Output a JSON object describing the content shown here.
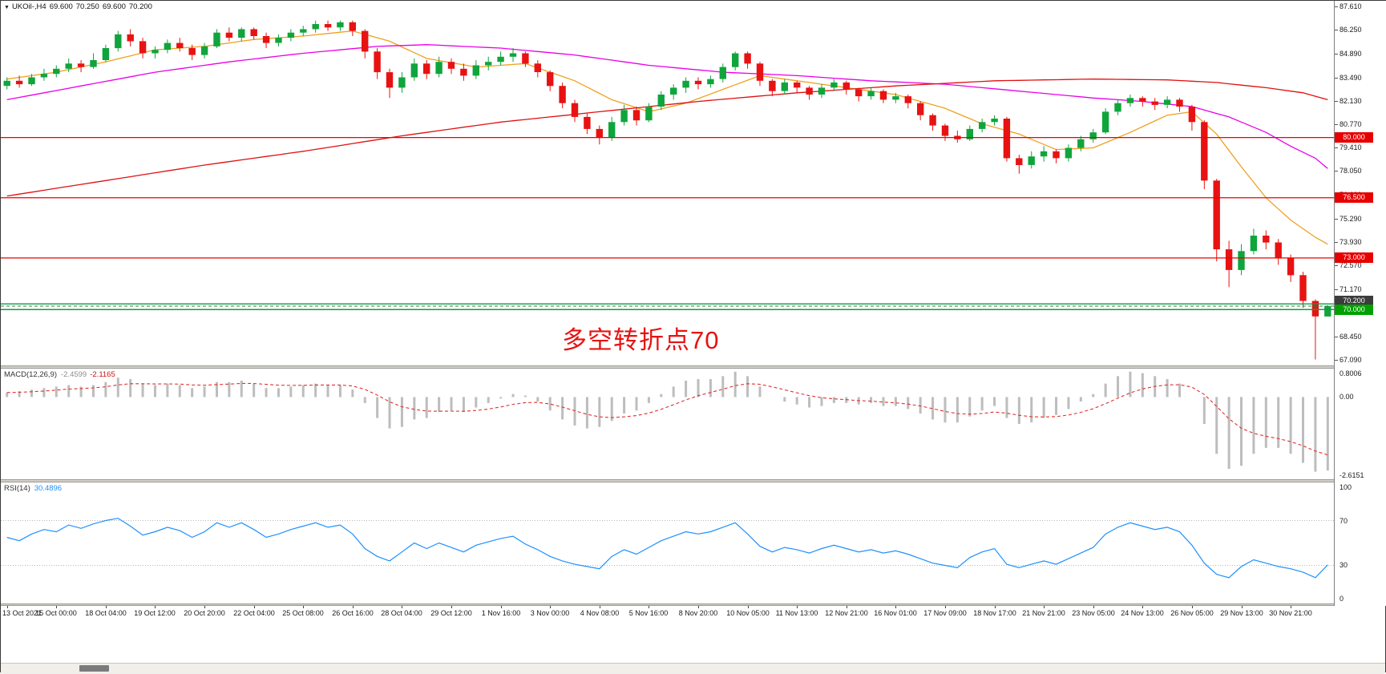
{
  "header": {
    "dropdown_icon": "▼",
    "symbol_period": "UKOil-,H4",
    "open": "69.600",
    "high": "70.250",
    "low": "69.600",
    "close": "70.200"
  },
  "annotation": {
    "text": "多空转折点70",
    "color": "#e81212"
  },
  "colors": {
    "bull": "#0fa53c",
    "bear": "#e81212",
    "ma_fast": "#f0a020",
    "ma_mid": "#e800e8",
    "ma_slow": "#e01010",
    "macd_hist": "#bdbdbd",
    "macd_signal": "#e03030",
    "rsi_line": "#1e90ff",
    "rsi_level": "#b8b8b8",
    "axis_text": "#1a1a1a"
  },
  "price_axis": {
    "ticks": [
      {
        "label": "87.610",
        "price": 87.61
      },
      {
        "label": "86.250",
        "price": 86.25
      },
      {
        "label": "84.890",
        "price": 84.89
      },
      {
        "label": "83.490",
        "price": 83.49
      },
      {
        "label": "82.130",
        "price": 82.13
      },
      {
        "label": "80.770",
        "price": 80.77
      },
      {
        "label": "79.410",
        "price": 79.41
      },
      {
        "label": "78.050",
        "price": 78.05
      },
      {
        "label": "76.690",
        "price": 76.69
      },
      {
        "label": "75.290",
        "price": 75.29
      },
      {
        "label": "73.930",
        "price": 73.93
      },
      {
        "label": "72.570",
        "price": 72.57
      },
      {
        "label": "71.170",
        "price": 71.17
      },
      {
        "label": "69.810",
        "price": 69.81
      },
      {
        "label": "68.450",
        "price": 68.45
      },
      {
        "label": "67.090",
        "price": 67.09
      }
    ],
    "badges": [
      {
        "label": "80.000",
        "price": 80.0,
        "bg": "#e60000",
        "align": "center"
      },
      {
        "label": "76.500",
        "price": 76.5,
        "bg": "#e60000",
        "align": "center"
      },
      {
        "label": "73.000",
        "price": 73.0,
        "bg": "#e60000",
        "align": "center"
      },
      {
        "label": "70.200",
        "price": 70.2,
        "bg": "#3c3c3c",
        "align": "above"
      },
      {
        "label": "70.000",
        "price": 70.0,
        "bg": "#00a000",
        "align": "center"
      }
    ]
  },
  "drawn_objects": {
    "hlines": [
      {
        "price": 80.0,
        "color": "#ee0000",
        "style": "solid",
        "width": 1.2
      },
      {
        "price": 76.5,
        "color": "#ee0000",
        "style": "solid",
        "width": 1.2
      },
      {
        "price": 73.0,
        "color": "#ee0000",
        "style": "solid",
        "width": 1.2
      },
      {
        "price": 70.33,
        "color": "#00a33c",
        "style": "solid",
        "width": 1.4
      },
      {
        "price": 70.0,
        "color": "#00a33c",
        "style": "solid",
        "width": 1.4
      },
      {
        "price": 70.2,
        "color": "#606060",
        "style": "dashed",
        "width": 1
      }
    ]
  },
  "time_axis": {
    "labels": [
      "13 Oct 2021",
      "15 Oct 00:00",
      "18 Oct 04:00",
      "19 Oct 12:00",
      "20 Oct 20:00",
      "22 Oct 04:00",
      "25 Oct 08:00",
      "26 Oct 16:00",
      "28 Oct 04:00",
      "29 Oct 12:00",
      "1 Nov 16:00",
      "3 Nov 00:00",
      "4 Nov 08:00",
      "5 Nov 16:00",
      "8 Nov 20:00",
      "10 Nov 05:00",
      "11 Nov 13:00",
      "12 Nov 21:00",
      "16 Nov 01:00",
      "17 Nov 09:00",
      "18 Nov 17:00",
      "21 Nov 21:00",
      "23 Nov 05:00",
      "24 Nov 13:00",
      "26 Nov 05:00",
      "29 Nov 13:00",
      "30 Nov 21:00"
    ],
    "bars_per_label": 4
  },
  "chart_data": {
    "type": "candlestick",
    "symbol": "UKOil-",
    "timeframe": "H4",
    "y_range": [
      66.75,
      87.95
    ],
    "candles": [
      [
        83.0,
        83.5,
        82.8,
        83.3
      ],
      [
        83.3,
        83.6,
        82.9,
        83.1
      ],
      [
        83.1,
        83.7,
        83.0,
        83.5
      ],
      [
        83.5,
        84.0,
        83.3,
        83.7
      ],
      [
        83.7,
        84.2,
        83.5,
        84.0
      ],
      [
        84.0,
        84.6,
        83.8,
        84.3
      ],
      [
        84.3,
        84.5,
        83.8,
        84.1
      ],
      [
        84.1,
        84.9,
        84.0,
        84.5
      ],
      [
        84.5,
        85.4,
        84.4,
        85.2
      ],
      [
        85.2,
        86.2,
        85.0,
        86.0
      ],
      [
        86.0,
        86.3,
        85.3,
        85.6
      ],
      [
        85.6,
        85.8,
        84.6,
        84.9
      ],
      [
        84.9,
        85.3,
        84.6,
        85.1
      ],
      [
        85.1,
        85.7,
        84.9,
        85.5
      ],
      [
        85.5,
        85.8,
        85.0,
        85.2
      ],
      [
        85.2,
        85.4,
        84.5,
        84.8
      ],
      [
        84.8,
        85.5,
        84.6,
        85.3
      ],
      [
        85.3,
        86.3,
        85.2,
        86.1
      ],
      [
        86.1,
        86.4,
        85.6,
        85.8
      ],
      [
        85.8,
        86.4,
        85.6,
        86.3
      ],
      [
        86.3,
        86.4,
        85.7,
        85.9
      ],
      [
        85.9,
        86.1,
        85.2,
        85.5
      ],
      [
        85.5,
        86.0,
        85.3,
        85.8
      ],
      [
        85.8,
        86.3,
        85.6,
        86.1
      ],
      [
        86.1,
        86.5,
        85.9,
        86.3
      ],
      [
        86.3,
        86.8,
        86.1,
        86.6
      ],
      [
        86.6,
        86.8,
        86.2,
        86.4
      ],
      [
        86.4,
        86.8,
        86.2,
        86.7
      ],
      [
        86.7,
        86.8,
        85.9,
        86.2
      ],
      [
        86.2,
        86.3,
        84.6,
        85.0
      ],
      [
        85.0,
        85.2,
        83.4,
        83.8
      ],
      [
        83.8,
        84.0,
        82.3,
        82.9
      ],
      [
        82.9,
        83.8,
        82.6,
        83.5
      ],
      [
        83.5,
        84.6,
        83.3,
        84.3
      ],
      [
        84.3,
        84.5,
        83.4,
        83.7
      ],
      [
        83.7,
        84.7,
        83.5,
        84.4
      ],
      [
        84.4,
        84.6,
        83.7,
        84.0
      ],
      [
        84.0,
        84.3,
        83.3,
        83.6
      ],
      [
        83.6,
        84.5,
        83.4,
        84.2
      ],
      [
        84.2,
        84.7,
        83.9,
        84.4
      ],
      [
        84.4,
        85.0,
        84.2,
        84.7
      ],
      [
        84.7,
        85.2,
        84.4,
        84.9
      ],
      [
        84.9,
        85.0,
        84.1,
        84.3
      ],
      [
        84.3,
        84.5,
        83.5,
        83.8
      ],
      [
        83.8,
        83.9,
        82.7,
        83.0
      ],
      [
        83.0,
        83.2,
        81.7,
        82.0
      ],
      [
        82.0,
        82.2,
        80.9,
        81.2
      ],
      [
        81.2,
        81.4,
        80.2,
        80.5
      ],
      [
        80.5,
        80.7,
        79.6,
        80.0
      ],
      [
        80.0,
        81.2,
        79.8,
        80.9
      ],
      [
        80.9,
        81.9,
        80.7,
        81.6
      ],
      [
        81.6,
        81.8,
        80.7,
        81.0
      ],
      [
        81.0,
        82.0,
        80.9,
        81.8
      ],
      [
        81.8,
        82.7,
        81.6,
        82.5
      ],
      [
        82.5,
        83.1,
        82.2,
        82.9
      ],
      [
        82.9,
        83.5,
        82.6,
        83.3
      ],
      [
        83.3,
        83.5,
        82.8,
        83.1
      ],
      [
        83.1,
        83.6,
        82.9,
        83.4
      ],
      [
        83.4,
        84.3,
        83.2,
        84.1
      ],
      [
        84.1,
        85.0,
        83.9,
        84.9
      ],
      [
        84.9,
        85.0,
        84.0,
        84.3
      ],
      [
        84.3,
        84.4,
        83.0,
        83.3
      ],
      [
        83.3,
        83.4,
        82.4,
        82.7
      ],
      [
        82.7,
        83.4,
        82.5,
        83.2
      ],
      [
        83.2,
        83.3,
        82.6,
        82.9
      ],
      [
        82.9,
        83.0,
        82.2,
        82.5
      ],
      [
        82.5,
        83.1,
        82.3,
        82.9
      ],
      [
        82.9,
        83.4,
        82.7,
        83.2
      ],
      [
        83.2,
        83.3,
        82.5,
        82.8
      ],
      [
        82.8,
        82.9,
        82.1,
        82.4
      ],
      [
        82.4,
        82.9,
        82.2,
        82.7
      ],
      [
        82.7,
        82.8,
        82.0,
        82.2
      ],
      [
        82.2,
        82.6,
        82.0,
        82.4
      ],
      [
        82.4,
        82.5,
        81.7,
        82.0
      ],
      [
        82.0,
        82.1,
        81.0,
        81.3
      ],
      [
        81.3,
        81.4,
        80.4,
        80.7
      ],
      [
        80.7,
        80.8,
        79.8,
        80.1
      ],
      [
        80.1,
        80.4,
        79.7,
        79.9
      ],
      [
        79.9,
        80.7,
        79.8,
        80.5
      ],
      [
        80.5,
        81.1,
        80.3,
        80.9
      ],
      [
        80.9,
        81.3,
        80.7,
        81.1
      ],
      [
        81.1,
        81.2,
        78.6,
        78.8
      ],
      [
        78.8,
        79.0,
        77.9,
        78.4
      ],
      [
        78.4,
        79.2,
        78.2,
        78.9
      ],
      [
        78.9,
        79.5,
        78.6,
        79.2
      ],
      [
        79.2,
        79.3,
        78.5,
        78.8
      ],
      [
        78.8,
        79.6,
        78.6,
        79.4
      ],
      [
        79.4,
        80.1,
        79.2,
        79.9
      ],
      [
        79.9,
        80.5,
        79.7,
        80.3
      ],
      [
        80.3,
        81.7,
        80.2,
        81.5
      ],
      [
        81.5,
        82.2,
        81.3,
        82.0
      ],
      [
        82.0,
        82.5,
        81.8,
        82.3
      ],
      [
        82.3,
        82.4,
        81.8,
        82.1
      ],
      [
        82.1,
        82.3,
        81.6,
        81.9
      ],
      [
        81.9,
        82.4,
        81.7,
        82.2
      ],
      [
        82.2,
        82.3,
        81.5,
        81.8
      ],
      [
        81.8,
        81.9,
        80.4,
        80.9
      ],
      [
        80.9,
        81.0,
        77.0,
        77.5
      ],
      [
        77.5,
        77.6,
        72.8,
        73.5
      ],
      [
        73.5,
        74.0,
        71.3,
        72.3
      ],
      [
        72.3,
        73.8,
        72.0,
        73.4
      ],
      [
        73.4,
        74.7,
        73.2,
        74.3
      ],
      [
        74.3,
        74.6,
        73.5,
        73.9
      ],
      [
        73.9,
        74.1,
        72.6,
        73.0
      ],
      [
        73.0,
        73.2,
        71.6,
        72.0
      ],
      [
        72.0,
        72.2,
        70.1,
        70.5
      ],
      [
        70.5,
        70.6,
        67.1,
        69.6
      ],
      [
        69.6,
        70.25,
        69.6,
        70.2
      ]
    ],
    "moving_averages": [
      {
        "name": "ma-fast-orange",
        "color_key": "ma_fast",
        "anchors": [
          [
            0,
            83.4
          ],
          [
            4,
            83.8
          ],
          [
            8,
            84.4
          ],
          [
            12,
            85.1
          ],
          [
            16,
            85.3
          ],
          [
            20,
            85.7
          ],
          [
            24,
            85.9
          ],
          [
            28,
            86.2
          ],
          [
            31,
            85.6
          ],
          [
            34,
            84.6
          ],
          [
            38,
            84.1
          ],
          [
            42,
            84.3
          ],
          [
            46,
            83.3
          ],
          [
            49,
            82.2
          ],
          [
            52,
            81.5
          ],
          [
            55,
            82.0
          ],
          [
            58,
            82.8
          ],
          [
            61,
            83.6
          ],
          [
            64,
            83.3
          ],
          [
            68,
            82.9
          ],
          [
            72,
            82.5
          ],
          [
            76,
            81.7
          ],
          [
            79,
            80.8
          ],
          [
            82,
            80.2
          ],
          [
            85,
            79.3
          ],
          [
            88,
            79.4
          ],
          [
            91,
            80.3
          ],
          [
            94,
            81.3
          ],
          [
            96,
            81.5
          ],
          [
            98,
            80.2
          ],
          [
            100,
            78.3
          ],
          [
            102,
            76.5
          ],
          [
            104,
            75.2
          ],
          [
            106,
            74.2
          ],
          [
            107,
            73.8
          ]
        ]
      },
      {
        "name": "ma-mid-magenta",
        "color_key": "ma_mid",
        "anchors": [
          [
            0,
            82.2
          ],
          [
            6,
            83.0
          ],
          [
            12,
            83.8
          ],
          [
            18,
            84.4
          ],
          [
            24,
            84.9
          ],
          [
            30,
            85.3
          ],
          [
            34,
            85.4
          ],
          [
            40,
            85.2
          ],
          [
            46,
            84.8
          ],
          [
            52,
            84.2
          ],
          [
            58,
            83.8
          ],
          [
            64,
            83.6
          ],
          [
            70,
            83.3
          ],
          [
            76,
            83.1
          ],
          [
            82,
            82.7
          ],
          [
            88,
            82.3
          ],
          [
            92,
            82.1
          ],
          [
            96,
            81.8
          ],
          [
            99,
            81.2
          ],
          [
            102,
            80.3
          ],
          [
            104,
            79.5
          ],
          [
            106,
            78.8
          ],
          [
            107,
            78.2
          ]
        ]
      },
      {
        "name": "ma-slow-red",
        "color_key": "ma_slow",
        "anchors": [
          [
            0,
            76.6
          ],
          [
            8,
            77.5
          ],
          [
            16,
            78.4
          ],
          [
            24,
            79.2
          ],
          [
            32,
            80.1
          ],
          [
            40,
            80.9
          ],
          [
            48,
            81.5
          ],
          [
            56,
            82.1
          ],
          [
            64,
            82.6
          ],
          [
            72,
            83.0
          ],
          [
            80,
            83.3
          ],
          [
            88,
            83.4
          ],
          [
            94,
            83.35
          ],
          [
            98,
            83.2
          ],
          [
            102,
            82.9
          ],
          [
            105,
            82.6
          ],
          [
            107,
            82.2
          ]
        ]
      }
    ],
    "macd": {
      "label": "MACD(12,26,9)",
      "value": "-2.4599",
      "signal_value": "-2.1165",
      "scale_max_label": "0.8006",
      "scale_max": 0.8006,
      "scale_zero_label": "0.00",
      "scale_min_label": "-2.6151",
      "scale_min": -2.6151,
      "hist": [
        0.15,
        0.2,
        0.25,
        0.3,
        0.35,
        0.4,
        0.35,
        0.4,
        0.5,
        0.65,
        0.6,
        0.45,
        0.4,
        0.45,
        0.4,
        0.3,
        0.35,
        0.5,
        0.5,
        0.55,
        0.45,
        0.3,
        0.3,
        0.35,
        0.4,
        0.45,
        0.4,
        0.4,
        0.25,
        -0.2,
        -0.7,
        -1.05,
        -1.0,
        -0.75,
        -0.7,
        -0.5,
        -0.45,
        -0.5,
        -0.35,
        -0.2,
        -0.05,
        0.1,
        0.05,
        -0.15,
        -0.45,
        -0.75,
        -0.95,
        -1.05,
        -1.0,
        -0.8,
        -0.55,
        -0.45,
        -0.2,
        0.1,
        0.35,
        0.55,
        0.6,
        0.6,
        0.7,
        0.85,
        0.7,
        0.35,
        0.0,
        -0.15,
        -0.25,
        -0.35,
        -0.3,
        -0.2,
        -0.2,
        -0.25,
        -0.2,
        -0.3,
        -0.3,
        -0.4,
        -0.55,
        -0.75,
        -0.85,
        -0.85,
        -0.65,
        -0.45,
        -0.3,
        -0.7,
        -0.9,
        -0.85,
        -0.7,
        -0.6,
        -0.4,
        -0.15,
        0.1,
        0.45,
        0.7,
        0.85,
        0.8,
        0.7,
        0.6,
        0.45,
        0.0,
        -0.9,
        -1.9,
        -2.4,
        -2.3,
        -1.9,
        -1.7,
        -1.7,
        -1.9,
        -2.2,
        -2.5,
        -2.46
      ]
    },
    "rsi": {
      "label": "RSI(14)",
      "value": "30.4896",
      "levels": [
        {
          "label": "100",
          "value": 100
        },
        {
          "label": "70",
          "value": 70
        },
        {
          "label": "30",
          "value": 30
        },
        {
          "label": "0",
          "value": 0
        }
      ],
      "values": [
        55,
        52,
        58,
        62,
        60,
        66,
        63,
        67,
        70,
        72,
        65,
        57,
        60,
        64,
        61,
        55,
        60,
        68,
        64,
        68,
        62,
        55,
        58,
        62,
        65,
        68,
        64,
        66,
        58,
        45,
        38,
        34,
        42,
        50,
        45,
        50,
        46,
        42,
        48,
        51,
        54,
        56,
        49,
        44,
        38,
        34,
        31,
        29,
        27,
        38,
        44,
        40,
        46,
        52,
        56,
        60,
        58,
        60,
        64,
        68,
        58,
        47,
        42,
        46,
        44,
        41,
        45,
        48,
        45,
        42,
        44,
        41,
        43,
        40,
        36,
        32,
        30,
        28,
        37,
        42,
        45,
        31,
        28,
        31,
        34,
        31,
        36,
        41,
        46,
        58,
        64,
        68,
        65,
        62,
        64,
        60,
        48,
        32,
        22,
        19,
        29,
        35,
        32,
        29,
        27,
        24,
        19,
        30.5
      ]
    }
  }
}
